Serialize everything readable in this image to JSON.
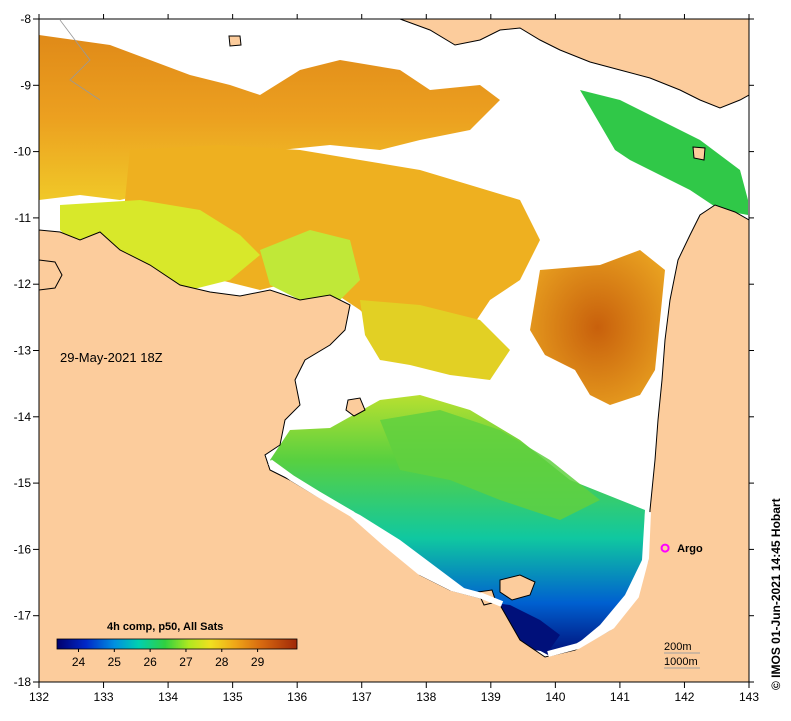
{
  "map": {
    "date_label": "29-May-2021 18Z",
    "credit": "© IMOS 01-Jun-2021 14:45 Hobart",
    "colorbar_title": "4h comp, p50, All Sats",
    "colorbar_ticks": [
      "24",
      "25",
      "26",
      "27",
      "28",
      "29"
    ],
    "colorbar_range": [
      23.4,
      30.1
    ],
    "marker_label": "Argo",
    "depth_contours": [
      "200m",
      "1000m"
    ],
    "x_ticks": [
      "132",
      "133",
      "134",
      "135",
      "136",
      "137",
      "138",
      "139",
      "140",
      "141",
      "142",
      "143"
    ],
    "y_ticks": [
      "-8",
      "-9",
      "-10",
      "-11",
      "-12",
      "-13",
      "-14",
      "-15",
      "-16",
      "-17",
      "-18"
    ],
    "lon_range": [
      132,
      143
    ],
    "lat_range": [
      -18,
      -8
    ],
    "argo_position": {
      "lon": 141.7,
      "lat": -15.98
    },
    "colors": {
      "land": "#fccc9c",
      "marker": "#ff00ff",
      "coastline": "#000000"
    }
  }
}
